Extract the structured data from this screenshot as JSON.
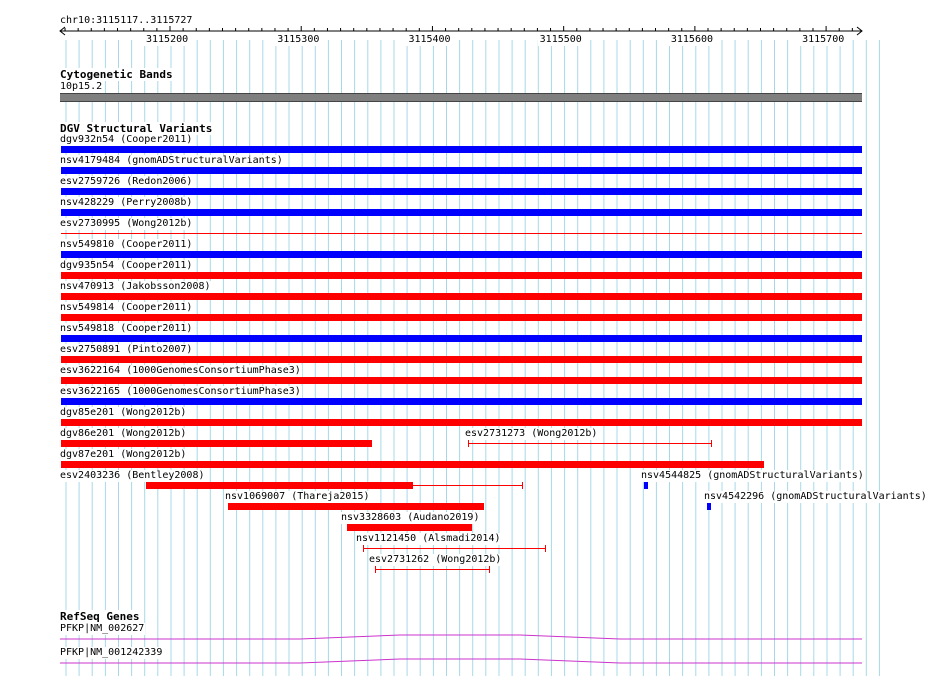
{
  "ruler": {
    "region": "chr10:3115117..3115727",
    "start": 3115117,
    "end": 3115727,
    "ticks": [
      3115200,
      3115300,
      3115400,
      3115500,
      3115600,
      3115700
    ],
    "tick_labels": [
      "3115200",
      "3115300",
      "3115400",
      "3115500",
      "3115600",
      "3115700"
    ]
  },
  "cytoband": {
    "title": "Cytogenetic Bands",
    "band": "10p15.2",
    "color": "#7f7f7f"
  },
  "colors": {
    "gain": "#0000ff",
    "loss": "#ff0000",
    "gene": "#cc33cc",
    "grid": "#a8d8e8"
  },
  "dgv": {
    "title": "DGV Structural Variants",
    "variants": [
      {
        "label": "dgv932n54 (Cooper2011)",
        "color": "blue",
        "thick_start": 3115117,
        "thick_end": 3115727
      },
      {
        "label": "nsv4179484 (gnomADStructuralVariants)",
        "color": "blue",
        "thick_start": 3115117,
        "thick_end": 3115727
      },
      {
        "label": "esv2759726 (Redon2006)",
        "color": "blue",
        "thick_start": 3115117,
        "thick_end": 3115727
      },
      {
        "label": "nsv428229 (Perry2008b)",
        "color": "blue",
        "thick_start": 3115117,
        "thick_end": 3115727
      },
      {
        "label": "esv2730995 (Wong2012b)",
        "color": "red",
        "thin_start": 3115117,
        "thin_end": 3115727
      },
      {
        "label": "nsv549810 (Cooper2011)",
        "color": "blue",
        "thick_start": 3115117,
        "thick_end": 3115727
      },
      {
        "label": "dgv935n54 (Cooper2011)",
        "color": "red",
        "thick_start": 3115117,
        "thick_end": 3115727
      },
      {
        "label": "nsv470913 (Jakobsson2008)",
        "color": "red",
        "thick_start": 3115117,
        "thick_end": 3115727
      },
      {
        "label": "nsv549814 (Cooper2011)",
        "color": "red",
        "thick_start": 3115117,
        "thick_end": 3115727
      },
      {
        "label": "nsv549818 (Cooper2011)",
        "color": "blue",
        "thick_start": 3115117,
        "thick_end": 3115727
      },
      {
        "label": "esv2750891 (Pinto2007)",
        "color": "red",
        "thick_start": 3115117,
        "thick_end": 3115727
      },
      {
        "label": "esv3622164 (1000GenomesConsortiumPhase3)",
        "color": "red",
        "thick_start": 3115117,
        "thick_end": 3115727
      },
      {
        "label": "esv3622165 (1000GenomesConsortiumPhase3)",
        "color": "blue",
        "thick_start": 3115117,
        "thick_end": 3115727
      },
      {
        "label": "dgv85e201 (Wong2012b)",
        "color": "red",
        "thick_start": 3115117,
        "thick_end": 3115727
      },
      {
        "label": "dgv86e201 (Wong2012b)",
        "color": "red",
        "thick_start": 3115117,
        "thick_end": 3115354
      },
      {
        "label": "esv2731273 (Wong2012b)",
        "color": "red",
        "thin_start": 3115427,
        "thin_end": 3115612
      },
      {
        "label": "dgv87e201 (Wong2012b)",
        "color": "red",
        "thick_start": 3115117,
        "thick_end": 3115653
      },
      {
        "label": "esv2403236 (Bentley2008)",
        "color": "red",
        "thick_start": 3115182,
        "thick_end": 3115385,
        "thin_start": 3115385,
        "thin_end": 3115468
      },
      {
        "label": "nsv4544825 (gnomADStructuralVariants)",
        "color": "blue",
        "thick_start": 3115561,
        "thick_end": 3115564
      },
      {
        "label": "nsv1069007 (Thareja2015)",
        "color": "red",
        "thick_start": 3115244,
        "thick_end": 3115439
      },
      {
        "label": "nsv4542296 (gnomADStructuralVariants)",
        "color": "blue",
        "thick_start": 3115609,
        "thick_end": 3115612
      },
      {
        "label": "nsv3328603 (Audano2019)",
        "color": "red",
        "thick_start": 3115335,
        "thick_end": 3115430
      },
      {
        "label": "nsv1121450 (Alsmadi2014)",
        "color": "red",
        "thin_start": 3115347,
        "thin_end": 3115486
      },
      {
        "label": "esv2731262 (Wong2012b)",
        "color": "red",
        "thin_start": 3115356,
        "thin_end": 3115443
      }
    ]
  },
  "refseq": {
    "title": "RefSeq Genes",
    "genes": [
      {
        "label": "PFKP|NM_002627"
      },
      {
        "label": "PFKP|NM_001242339"
      }
    ]
  }
}
